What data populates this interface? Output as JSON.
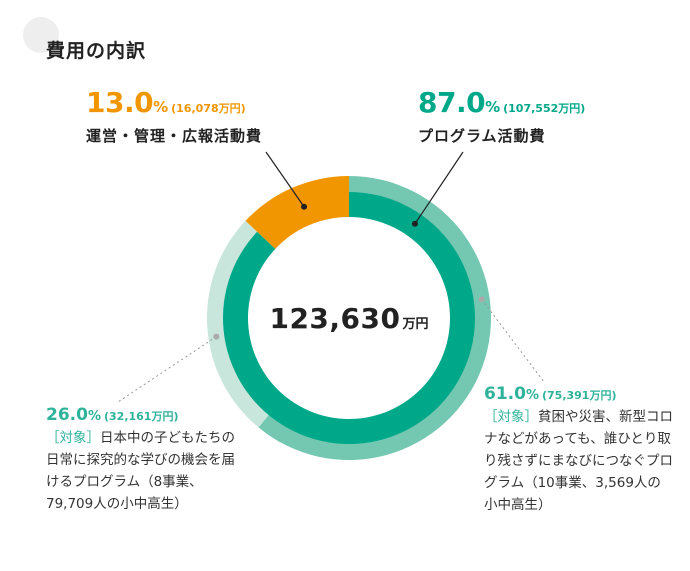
{
  "title": "費用の内訳",
  "colors": {
    "program": "#00a88a",
    "program_light": "#74c7b1",
    "program_lighter": "#c8e6dc",
    "operations": "#f29600",
    "text_green": "#2db39a"
  },
  "chart_data": {
    "type": "pie",
    "title": "費用の内訳",
    "total": "123,630",
    "total_unit": "万円",
    "outer": [
      {
        "name": "運営・管理・広報活動費",
        "percent": 13.0,
        "percent_text": "13.0",
        "amount": "16,078",
        "unit": "万円",
        "color": "#f29600"
      },
      {
        "name": "プログラム活動費",
        "percent": 87.0,
        "percent_text": "87.0",
        "amount": "107,552",
        "unit": "万円",
        "color": "#00a88a"
      }
    ],
    "inner": [
      {
        "percent": 26.0,
        "percent_text": "26.0",
        "amount": "32,161",
        "unit": "万円",
        "tag": "［対象］",
        "description": "日本中の子どもたちの日常に探究的な学びの機会を届けるプログラム（8事業、79,709人の小中高生）",
        "color": "#c8e6dc"
      },
      {
        "percent": 61.0,
        "percent_text": "61.0",
        "amount": "75,391",
        "unit": "万円",
        "tag": "［対象］",
        "description": "貧困や災害、新型コロナなどがあっても、誰ひとり取り残さずにまなびにつなぐプログラム（10事業、3,569人の小中高生）",
        "color": "#74c7b1"
      }
    ]
  }
}
